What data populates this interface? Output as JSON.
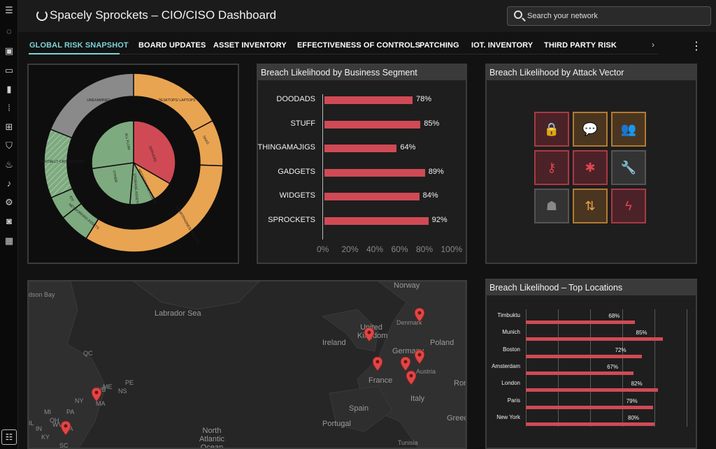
{
  "app": {
    "title": "Spacely Sprockets – CIO/CISO Dashboard"
  },
  "search": {
    "placeholder": "Search your network"
  },
  "rail_icons": [
    "menu-icon",
    "circle-icon",
    "id-card-icon",
    "devices-icon",
    "bar-chart-icon",
    "grid-icon",
    "plus-box-icon",
    "shield-icon",
    "flame-icon",
    "bell-icon",
    "gear-icon",
    "target-icon",
    "dashboard-icon"
  ],
  "tabs": [
    {
      "label": "GLOBAL RISK SNAPSHOT",
      "active": true
    },
    {
      "label": "BOARD UPDATES"
    },
    {
      "label": "ASSET INVENTORY"
    },
    {
      "label": "EFFECTIVENESS OF CONTROLS"
    },
    {
      "label": "PATCHING"
    },
    {
      "label": "IOT. INVENTORY"
    },
    {
      "label": "THIRD PARTY RISK"
    }
  ],
  "donut": {
    "outer": [
      {
        "label": "DESKTOPS/ LAPTOPS",
        "color": "#e9a451"
      },
      {
        "label": "SAAS",
        "color": "#e9a451"
      },
      {
        "label": "SMARTPHONES/ TABLETS",
        "color": "#e9a451"
      },
      {
        "label": "NETWORKING ASSETS",
        "color": "#7eaa7f"
      },
      {
        "label": "IOT",
        "color": "#7eaa7f"
      },
      {
        "label": "PARTIALLY CATEGORIZED",
        "color": "#7eaa7f"
      },
      {
        "label": "UNEXAMINED",
        "color": "#8a8a8a"
      }
    ],
    "inner": [
      {
        "label": "SERVERS",
        "color": "#cf4a55"
      },
      {
        "label": "NETWORKING ASSETS",
        "color": "#e9a451"
      },
      {
        "label": "STORAGE ASSETS",
        "color": "#7eaa7f"
      },
      {
        "label": "OTHER",
        "color": "#7eaa7f"
      },
      {
        "label": "ALL FLOW",
        "color": "#7eaa7f"
      }
    ]
  },
  "segment_panel": {
    "title": "Breach Likelihood by Business Segment",
    "chart_data": {
      "type": "bar",
      "categories": [
        "DOODADS",
        "STUFF",
        "THINGAMAJIGS",
        "GADGETS",
        "WIDGETS",
        "SPROCKETS"
      ],
      "values": [
        78,
        85,
        64,
        89,
        84,
        92
      ],
      "value_labels": [
        "78%",
        "85%",
        "64%",
        "89%",
        "84%",
        "92%"
      ],
      "xlim": [
        0,
        100
      ],
      "ticks": [
        "0%",
        "20%",
        "40%",
        "60%",
        "80%",
        "100%"
      ],
      "bar_color": "#d04a55"
    }
  },
  "vector_panel": {
    "title": "Breach Likelihood by Attack Vector",
    "tiles": [
      {
        "icon": "lock-icon",
        "tone": "red",
        "glyph": "🔒"
      },
      {
        "icon": "chat-icon",
        "tone": "org",
        "glyph": "💬"
      },
      {
        "icon": "people-icon",
        "tone": "org",
        "glyph": "👥"
      },
      {
        "icon": "key-icon",
        "tone": "red",
        "glyph": "⚷"
      },
      {
        "icon": "bug-icon",
        "tone": "red",
        "glyph": "✱"
      },
      {
        "icon": "wrench-icon",
        "tone": "gry",
        "glyph": "🔧"
      },
      {
        "icon": "spy-icon",
        "tone": "gry",
        "glyph": "☗"
      },
      {
        "icon": "swap-icon",
        "tone": "org",
        "glyph": "⇅"
      },
      {
        "icon": "lightning-icon",
        "tone": "red",
        "glyph": "ϟ"
      }
    ]
  },
  "locations_panel": {
    "title": "Breach Likelihood – Top Locations",
    "chart_data": {
      "type": "bar",
      "categories": [
        "Timbuktu",
        "Munich",
        "Boston",
        "Amsterdam",
        "London",
        "Paris",
        "New York"
      ],
      "values": [
        68,
        85,
        72,
        67,
        82,
        79,
        80
      ],
      "value_labels": [
        "68%",
        "85%",
        "72%",
        "67%",
        "82%",
        "79%",
        "80%"
      ],
      "xlim": [
        0,
        100
      ],
      "bar_color": "#d04a55"
    }
  },
  "map": {
    "labels": [
      {
        "text": "dson Bay"
      },
      {
        "text": "Labrador Sea"
      },
      {
        "text": "QC"
      },
      {
        "text": "NB"
      },
      {
        "text": "ME"
      },
      {
        "text": "NS"
      },
      {
        "text": "PE"
      },
      {
        "text": "NY"
      },
      {
        "text": "MA"
      },
      {
        "text": "MI"
      },
      {
        "text": "PA"
      },
      {
        "text": "OH"
      },
      {
        "text": "IL"
      },
      {
        "text": "IN"
      },
      {
        "text": "WV"
      },
      {
        "text": "VA"
      },
      {
        "text": "KY"
      },
      {
        "text": "SC"
      },
      {
        "text": "Norway"
      },
      {
        "text": "United Kingdom"
      },
      {
        "text": "Denmark"
      },
      {
        "text": "Ireland"
      },
      {
        "text": "Germany"
      },
      {
        "text": "Poland"
      },
      {
        "text": "Austria"
      },
      {
        "text": "France"
      },
      {
        "text": "Italy"
      },
      {
        "text": "Spain"
      },
      {
        "text": "Portugal"
      },
      {
        "text": "Greece"
      },
      {
        "text": "Romania"
      },
      {
        "text": "Tunisia"
      },
      {
        "text": "North Atlantic Ocean"
      }
    ],
    "pin_color": "#e04646"
  }
}
